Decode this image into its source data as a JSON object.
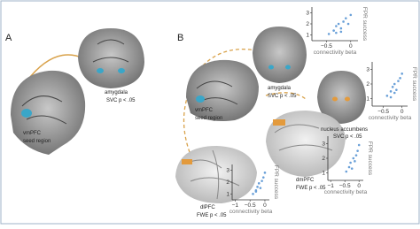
{
  "panel_a": {
    "label": "A",
    "seed": {
      "name": "vmPFC",
      "note": "seed region"
    },
    "target": {
      "name": "amygdala",
      "stat": "SVC p < .05"
    }
  },
  "panel_b": {
    "label": "B",
    "seed": {
      "name": "vmPFC",
      "note": "seed region"
    },
    "targets": [
      {
        "name": "amygdala",
        "stat": "SVC p < .05"
      },
      {
        "name": "nucleus accumbens",
        "stat": "SVC p < .05"
      },
      {
        "name": "dlPFC",
        "stat": "FWE p < .05"
      },
      {
        "name": "dmPFC",
        "stat": "FWE p < .05"
      }
    ],
    "plots": [
      {
        "xlabel": "connectivity beta",
        "ylabel": "FPR success",
        "xlim": [
          -0.8,
          0.15
        ],
        "ylim": [
          0.5,
          3.5
        ],
        "xticks": [
          {
            "value": -0.5,
            "label": "−0.5"
          },
          0
        ],
        "yticks": [
          1,
          2,
          3
        ],
        "x": [
          -0.45,
          -0.35,
          -0.3,
          -0.25,
          -0.2,
          -0.15,
          -0.1,
          -0.05,
          0.0,
          -0.3,
          -0.2
        ],
        "y": [
          1.1,
          1.4,
          1.8,
          2.0,
          1.6,
          2.2,
          2.5,
          2.0,
          2.8,
          1.2,
          1.3
        ]
      },
      {
        "xlabel": "connectivity beta",
        "ylabel": "FPR success",
        "xlim": [
          -0.8,
          0.15
        ],
        "ylim": [
          0.5,
          3.5
        ],
        "xticks": [
          {
            "value": -0.5,
            "label": "−0.5"
          },
          0
        ],
        "yticks": [
          1,
          2,
          3
        ],
        "x": [
          -0.4,
          -0.3,
          -0.25,
          -0.2,
          -0.15,
          -0.1,
          -0.05,
          -0.3,
          -0.2,
          0.0
        ],
        "y": [
          1.2,
          1.5,
          1.8,
          2.0,
          1.6,
          2.2,
          2.4,
          1.1,
          1.4,
          2.7
        ]
      },
      {
        "xlabel": "connectivity beta",
        "ylabel": "FPR success",
        "xlim": [
          -1.1,
          0.15
        ],
        "ylim": [
          0.5,
          3.5
        ],
        "xticks": [
          {
            "value": -1,
            "label": "−1"
          },
          {
            "value": -0.5,
            "label": "−0.5"
          },
          0
        ],
        "yticks": [
          1,
          2,
          3
        ],
        "x": [
          -0.4,
          -0.3,
          -0.25,
          -0.2,
          -0.15,
          -0.1,
          -0.05,
          0.0,
          -0.3
        ],
        "y": [
          1.0,
          1.3,
          1.6,
          1.9,
          1.5,
          2.1,
          2.4,
          2.8,
          1.2
        ]
      },
      {
        "xlabel": "connectivity beta",
        "ylabel": "FPR success",
        "xlim": [
          -1.1,
          0.15
        ],
        "ylim": [
          0.5,
          3.5
        ],
        "xticks": [
          {
            "value": -1,
            "label": "−1"
          },
          {
            "value": -0.5,
            "label": "−0.5"
          },
          0
        ],
        "yticks": [
          1,
          2,
          3
        ],
        "x": [
          -0.45,
          -0.35,
          -0.3,
          -0.2,
          -0.15,
          -0.1,
          -0.05,
          0.0,
          -0.25
        ],
        "y": [
          1.1,
          1.4,
          1.7,
          2.0,
          1.8,
          2.2,
          2.5,
          2.9,
          1.3
        ]
      }
    ]
  }
}
